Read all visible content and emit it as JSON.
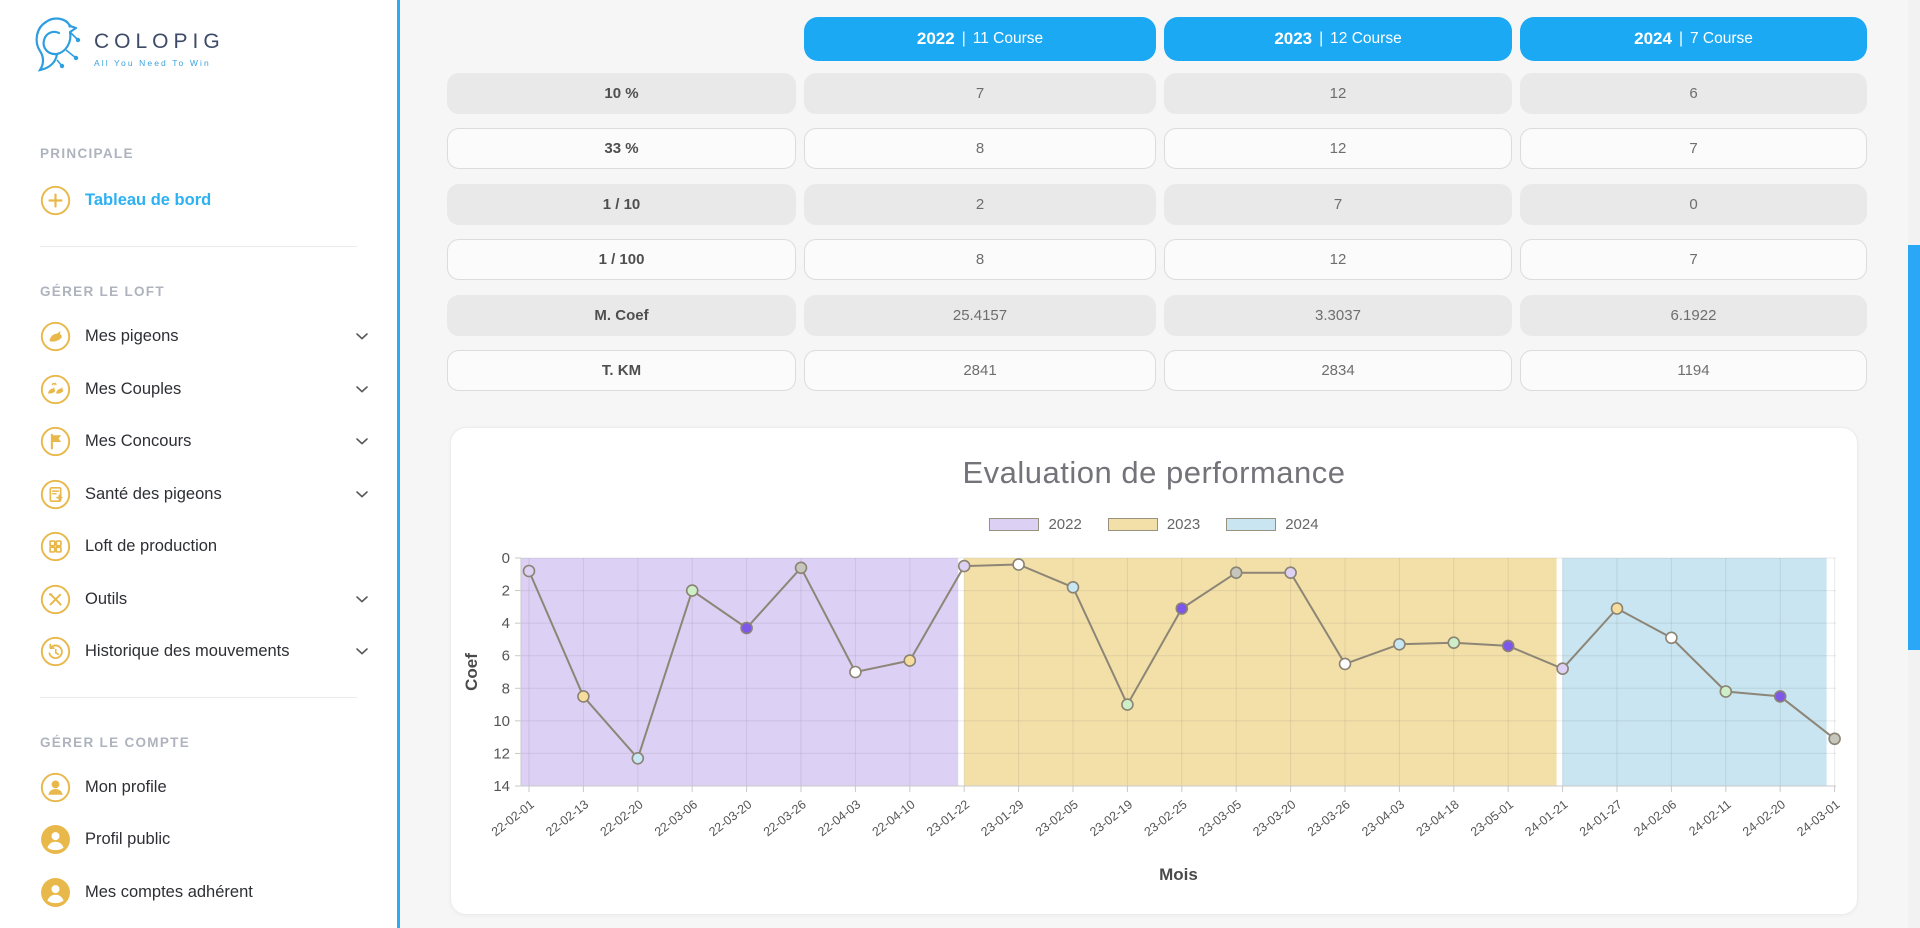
{
  "brand": {
    "name": "COLOPIG",
    "tagline": "All You Need To Win"
  },
  "sidebar": {
    "sections": [
      {
        "label": "PRINCIPALE",
        "items": [
          {
            "label": "Tableau de bord",
            "icon": "plus-circle-icon",
            "active": true,
            "chevron": false
          }
        ]
      },
      {
        "label": "GÉRER LE LOFT",
        "items": [
          {
            "label": "Mes pigeons",
            "icon": "pigeon-icon",
            "active": false,
            "chevron": true
          },
          {
            "label": "Mes Couples",
            "icon": "couple-birds-icon",
            "active": false,
            "chevron": true
          },
          {
            "label": "Mes Concours",
            "icon": "flag-icon",
            "active": false,
            "chevron": true
          },
          {
            "label": "Santé des pigeons",
            "icon": "health-doc-icon",
            "active": false,
            "chevron": true
          },
          {
            "label": "Loft de production",
            "icon": "grid-icon",
            "active": false,
            "chevron": false
          },
          {
            "label": "Outils",
            "icon": "tools-icon",
            "active": false,
            "chevron": true
          },
          {
            "label": "Historique des mouvements",
            "icon": "history-icon",
            "active": false,
            "chevron": true
          }
        ]
      },
      {
        "label": "GÉRER LE COMPTE",
        "items": [
          {
            "label": "Mon profile",
            "icon": "user-outline-icon",
            "active": false,
            "chevron": false
          },
          {
            "label": "Profil public",
            "icon": "user-solid-icon",
            "active": false,
            "chevron": false
          },
          {
            "label": "Mes comptes adhérent",
            "icon": "user-solid-icon",
            "active": false,
            "chevron": false
          }
        ]
      }
    ]
  },
  "stats_table": {
    "columns": [
      {
        "year": "2022",
        "separator": "|",
        "courses": "11 Course"
      },
      {
        "year": "2023",
        "separator": "|",
        "courses": "12 Course"
      },
      {
        "year": "2024",
        "separator": "|",
        "courses": "7 Course"
      }
    ],
    "rows": [
      {
        "label": "10 %",
        "values": [
          "7",
          "12",
          "6"
        ]
      },
      {
        "label": "33 %",
        "values": [
          "8",
          "12",
          "7"
        ]
      },
      {
        "label": "1 / 10",
        "values": [
          "2",
          "7",
          "0"
        ]
      },
      {
        "label": "1 / 100",
        "values": [
          "8",
          "12",
          "7"
        ]
      },
      {
        "label": "M. Coef",
        "values": [
          "25.4157",
          "3.3037",
          "6.1922"
        ]
      },
      {
        "label": "T. KM",
        "values": [
          "2841",
          "2834",
          "1194"
        ]
      }
    ]
  },
  "chart_data": {
    "type": "line",
    "title": "Evaluation de performance",
    "xlabel": "Mois",
    "ylabel": "Coef",
    "y_ticks": [
      0,
      2,
      4,
      6,
      8,
      10,
      12,
      14
    ],
    "y_inverted": true,
    "ylim": [
      0,
      14
    ],
    "grid": true,
    "legend_position": "top-center",
    "legend": [
      {
        "label": "2022",
        "color": "#dcd0f5"
      },
      {
        "label": "2023",
        "color": "#f3e0a8"
      },
      {
        "label": "2024",
        "color": "#c8e5f1"
      }
    ],
    "x": [
      "22-02-01",
      "22-02-13",
      "22-02-20",
      "22-03-06",
      "22-03-20",
      "22-03-26",
      "22-04-03",
      "22-04-10",
      "23-01-22",
      "23-01-29",
      "23-02-05",
      "23-02-19",
      "23-02-25",
      "23-03-05",
      "23-03-20",
      "23-03-26",
      "23-04-03",
      "23-04-18",
      "23-05-01",
      "24-01-21",
      "24-01-27",
      "24-02-06",
      "24-02-11",
      "24-02-20",
      "24-03-01"
    ],
    "values": [
      0.8,
      8.5,
      12.3,
      2.0,
      4.3,
      0.6,
      7.0,
      6.3,
      0.5,
      0.4,
      1.8,
      9.0,
      3.1,
      0.9,
      0.9,
      6.5,
      5.3,
      5.2,
      5.4,
      6.8,
      3.1,
      4.9,
      8.2,
      8.5,
      11.1
    ],
    "point_colors": [
      "#ded2f4",
      "#f7dd9d",
      "#c6e7f3",
      "#cdeec6",
      "#7d57e9",
      "#c6c6bd",
      "#ffffff",
      "#f7dd9d",
      "#ded2f4",
      "#ffffff",
      "#c6e7f3",
      "#cdeec6",
      "#7d57e9",
      "#c6c6bd",
      "#ded2f4",
      "#ffffff",
      "#c6e7f3",
      "#cdeec6",
      "#7d57e9",
      "#ded2f4",
      "#f7dd9d",
      "#ffffff",
      "#cdeec6",
      "#7d57e9",
      "#c6c6bd"
    ],
    "groups": [
      {
        "year": "2022",
        "start": 0,
        "end": 7
      },
      {
        "year": "2023",
        "start": 8,
        "end": 18
      },
      {
        "year": "2024",
        "start": 19,
        "end": 24
      }
    ],
    "band_colors": {
      "2022": "#dcd0f5",
      "2023": "#f3e0a8",
      "2024": "#c8e5f1"
    },
    "line_color": "#8d8677",
    "point_border_color": "#8b8373"
  }
}
